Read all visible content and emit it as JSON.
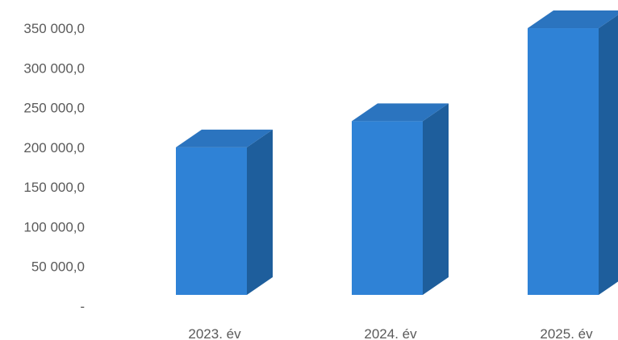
{
  "chart_data": {
    "type": "bar",
    "style": "3d-column",
    "categories": [
      "2023. év",
      "2024. év",
      "2025. év"
    ],
    "values": [
      202000,
      235000,
      352000
    ],
    "ylim": [
      0,
      350000
    ],
    "yticks": [
      0,
      50000,
      100000,
      150000,
      200000,
      250000,
      300000,
      350000
    ],
    "ytick_labels": [
      "-",
      "50 000,0",
      "100 000,0",
      "150 000,0",
      "200 000,0",
      "250 000,0",
      "300 000,0",
      "350 000,0"
    ],
    "grid": false,
    "legend": "none",
    "colors": {
      "front": "#2f82d6",
      "side": "#1e5e9c",
      "top": "#2b74bf"
    }
  }
}
